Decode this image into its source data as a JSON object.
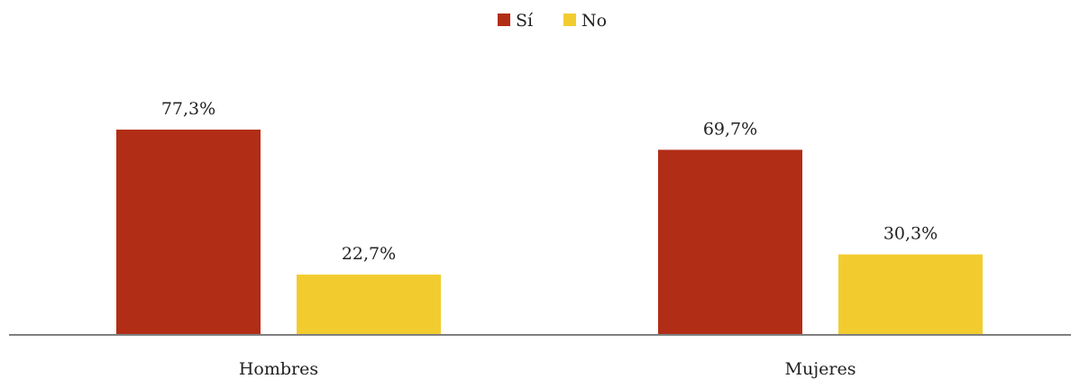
{
  "chart_data": {
    "type": "bar",
    "categories": [
      "Hombres",
      "Mujeres"
    ],
    "series": [
      {
        "name": "Sí",
        "values": [
          77.3,
          69.7
        ],
        "labels": [
          "77,3%",
          "69,7%"
        ],
        "color": "#b22d16"
      },
      {
        "name": "No",
        "values": [
          22.7,
          30.3
        ],
        "labels": [
          "22,7%",
          "30,3%"
        ],
        "color": "#f2cc2f"
      }
    ],
    "unit": "%",
    "title": "",
    "xlabel": "",
    "ylabel": "",
    "ylim": [
      0,
      100
    ],
    "grid": false,
    "legend_position": "top-center"
  },
  "colors": {
    "axis": "#7f7f7f",
    "text": "#222222"
  }
}
